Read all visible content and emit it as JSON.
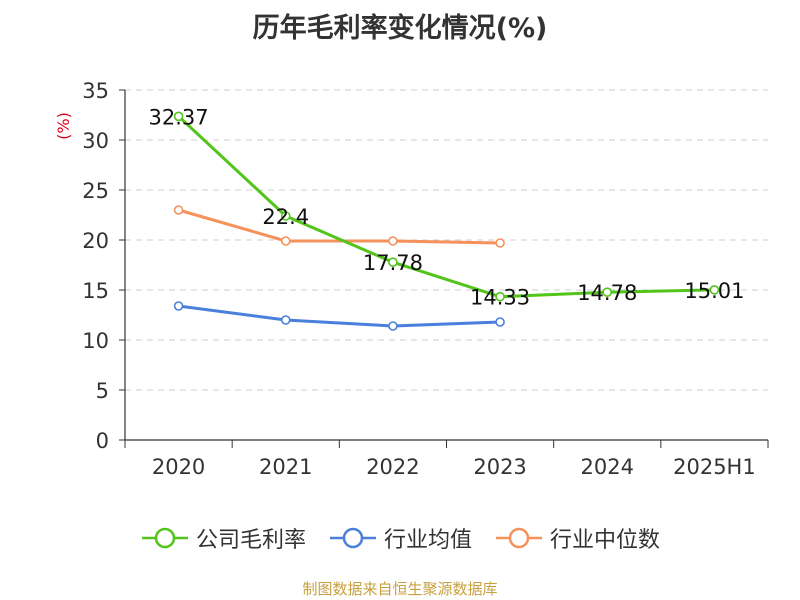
{
  "title": "历年毛利率变化情况(%)",
  "source_note": "制图数据来自恒生聚源数据库",
  "colors": {
    "gross_margin": "#52c41a",
    "industry_avg": "#4a7fdc",
    "industry_median": "#f5915a",
    "ylabel": "#d9001b",
    "grid": "#cccccc",
    "axis": "#333333"
  },
  "legend": [
    {
      "key": "gross_margin",
      "label": "公司毛利率"
    },
    {
      "key": "industry_avg",
      "label": "行业均值"
    },
    {
      "key": "industry_median",
      "label": "行业中位数"
    }
  ],
  "chart_data": {
    "type": "line",
    "title": "历年毛利率变化情况(%)",
    "ylabel": "(%)",
    "xlabel": "",
    "categories": [
      "2020",
      "2021",
      "2022",
      "2023",
      "2024",
      "2025H1"
    ],
    "ylim": [
      0,
      35
    ],
    "yticks": [
      0,
      5,
      10,
      15,
      20,
      25,
      30,
      35
    ],
    "grid": true,
    "legend_position": "bottom",
    "series": [
      {
        "key": "gross_margin",
        "name": "公司毛利率",
        "values": [
          32.37,
          22.4,
          17.78,
          14.33,
          14.78,
          15.01
        ],
        "labels": [
          "32.37",
          "22.4",
          "17.78",
          "14.33",
          "14.78",
          "15.01"
        ]
      },
      {
        "key": "industry_avg",
        "name": "行业均值",
        "values": [
          13.4,
          12.0,
          11.4,
          11.8,
          null,
          null
        ]
      },
      {
        "key": "industry_median",
        "name": "行业中位数",
        "values": [
          23.0,
          19.9,
          19.9,
          19.7,
          null,
          null
        ]
      }
    ]
  }
}
